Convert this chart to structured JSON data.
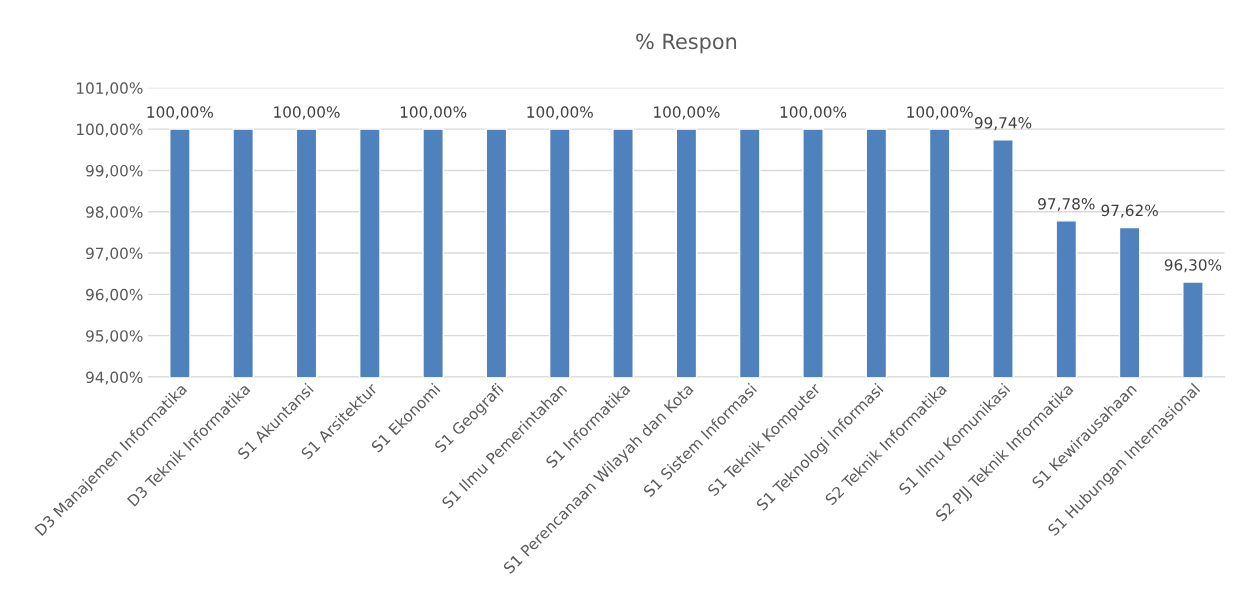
{
  "chart_data": {
    "type": "bar",
    "title": "% Respon",
    "categories": [
      "D3 Manajemen Informatika",
      "D3 Teknik Informatika",
      "S1 Akuntansi",
      "S1 Arsitektur",
      "S1 Ekonomi",
      "S1 Geografi",
      "S1 Ilmu Pemerintahan",
      "S1 Informatika",
      "S1 Perencanaan Wilayah dan Kota",
      "S1 Sistem Informasi",
      "S1 Teknik Komputer",
      "S1 Teknologi Informasi",
      "S2 Teknik Informatika",
      "S1 Ilmu Komunikasi",
      "S2 PJJ Teknik Informatika",
      "S1 Kewirausahaan",
      "S1 Hubungan Internasional"
    ],
    "values": [
      100,
      100,
      100,
      100,
      100,
      100,
      100,
      100,
      100,
      100,
      100,
      100,
      100,
      99.74,
      97.78,
      97.62,
      96.3
    ],
    "value_labels": [
      "100,00%",
      null,
      "100,00%",
      null,
      "100,00%",
      null,
      "100,00%",
      null,
      "100,00%",
      null,
      "100,00%",
      null,
      "100,00%",
      "99,74%",
      "97,78%",
      "97,62%",
      "96,30%"
    ],
    "color": "#4f81bd",
    "ylim": [
      94,
      101
    ],
    "yticks": [
      {
        "value": 94,
        "label": "94,00%"
      },
      {
        "value": 95,
        "label": "95,00%"
      },
      {
        "value": 96,
        "label": "96,00%"
      },
      {
        "value": 97,
        "label": "97,00%"
      },
      {
        "value": 98,
        "label": "98,00%"
      },
      {
        "value": 99,
        "label": "99,00%"
      },
      {
        "value": 100,
        "label": "100,00%"
      },
      {
        "value": 101,
        "label": "101,00%"
      }
    ],
    "grid": "y"
  }
}
